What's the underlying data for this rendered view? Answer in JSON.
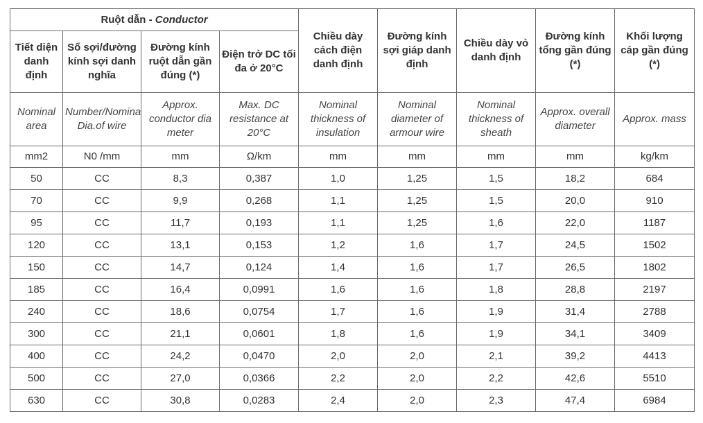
{
  "header": {
    "group_vi": "Ruột dẫn - ",
    "group_en": "Conductor",
    "cols_vi": [
      "Tiết diện danh định",
      "Số sợi/đường kính sợi danh nghĩa",
      "Đường kính ruột dẫn gần đúng (*)",
      "Điện trở DC tối đa ở 20°C",
      "Chiều dày cách điện danh định",
      "Đường kính sợi giáp danh định",
      "Chiều dày vỏ danh định",
      "Đường kính tổng gần đúng (*)",
      "Khối lượng cáp gần đúng (*)"
    ],
    "cols_en": [
      "Nominal area",
      "Number/Nominal Dia.of wire",
      "Approx. conductor dia meter",
      "Max. DC resistance at 20°C",
      "Nominal thickness of insulation",
      "Nominal diameter of armour wire",
      "Nominal thickness of sheath",
      "Approx. overall diameter",
      "Approx. mass"
    ],
    "units": [
      "mm2",
      "N0 /mm",
      "mm",
      "Ω/km",
      "mm",
      "mm",
      "mm",
      "mm",
      "kg/km"
    ]
  },
  "rows": [
    [
      "50",
      "CC",
      "8,3",
      "0,387",
      "1,0",
      "1,25",
      "1,5",
      "18,2",
      "684"
    ],
    [
      "70",
      "CC",
      "9,9",
      "0,268",
      "1,1",
      "1,25",
      "1,5",
      "20,0",
      "910"
    ],
    [
      "95",
      "CC",
      "11,7",
      "0,193",
      "1,1",
      "1,25",
      "1,6",
      "22,0",
      "1187"
    ],
    [
      "120",
      "CC",
      "13,1",
      "0,153",
      "1,2",
      "1,6",
      "1,7",
      "24,5",
      "1502"
    ],
    [
      "150",
      "CC",
      "14,7",
      "0,124",
      "1,4",
      "1,6",
      "1,7",
      "26,5",
      "1802"
    ],
    [
      "185",
      "CC",
      "16,4",
      "0,0991",
      "1,6",
      "1,6",
      "1,8",
      "28,8",
      "2197"
    ],
    [
      "240",
      "CC",
      "18,6",
      "0,0754",
      "1,7",
      "1,6",
      "1,9",
      "31,4",
      "2788"
    ],
    [
      "300",
      "CC",
      "21,1",
      "0,0601",
      "1,8",
      "1,6",
      "1,9",
      "34,1",
      "3409"
    ],
    [
      "400",
      "CC",
      "24,2",
      "0,0470",
      "2,0",
      "2,0",
      "2,1",
      "39,2",
      "4413"
    ],
    [
      "500",
      "CC",
      "27,0",
      "0,0366",
      "2,2",
      "2,0",
      "2,2",
      "42,6",
      "5510"
    ],
    [
      "630",
      "CC",
      "30,8",
      "0,0283",
      "2,4",
      "2,0",
      "2,3",
      "47,4",
      "6984"
    ]
  ]
}
